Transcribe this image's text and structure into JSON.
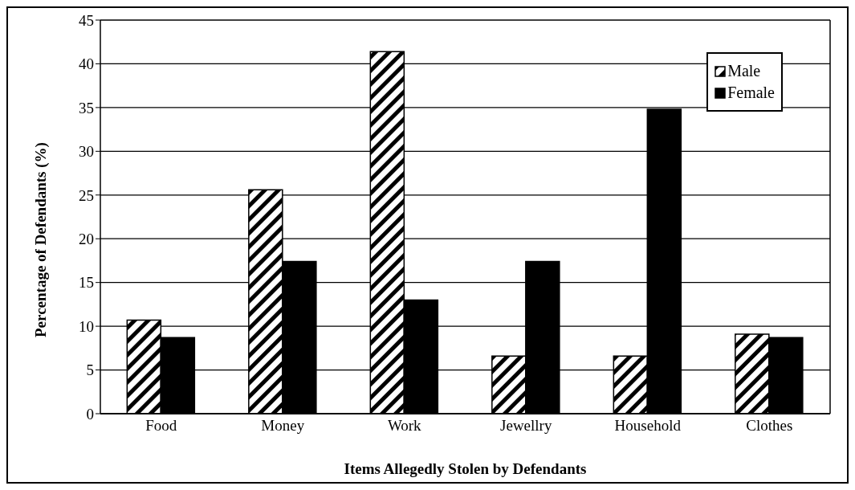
{
  "chart_data": {
    "type": "bar",
    "xlabel": "Items Allegedly Stolen by Defendants",
    "ylabel": "Percentage of Defendants (%)",
    "categories": [
      "Food",
      "Money",
      "Work",
      "Jewellry",
      "Household",
      "Clothes"
    ],
    "series": [
      {
        "name": "Male",
        "color": "#000000",
        "values": [
          10.7,
          25.6,
          41.4,
          6.6,
          6.6,
          9.1
        ]
      },
      {
        "name": "Female",
        "color": "#000000",
        "values": [
          8.7,
          17.4,
          13.0,
          17.4,
          34.8,
          8.7
        ]
      }
    ],
    "ylim": [
      0,
      45
    ],
    "yticks": [
      0,
      5,
      10,
      15,
      20,
      25,
      30,
      35,
      40,
      45
    ],
    "grid": "y",
    "legend": "top right"
  }
}
